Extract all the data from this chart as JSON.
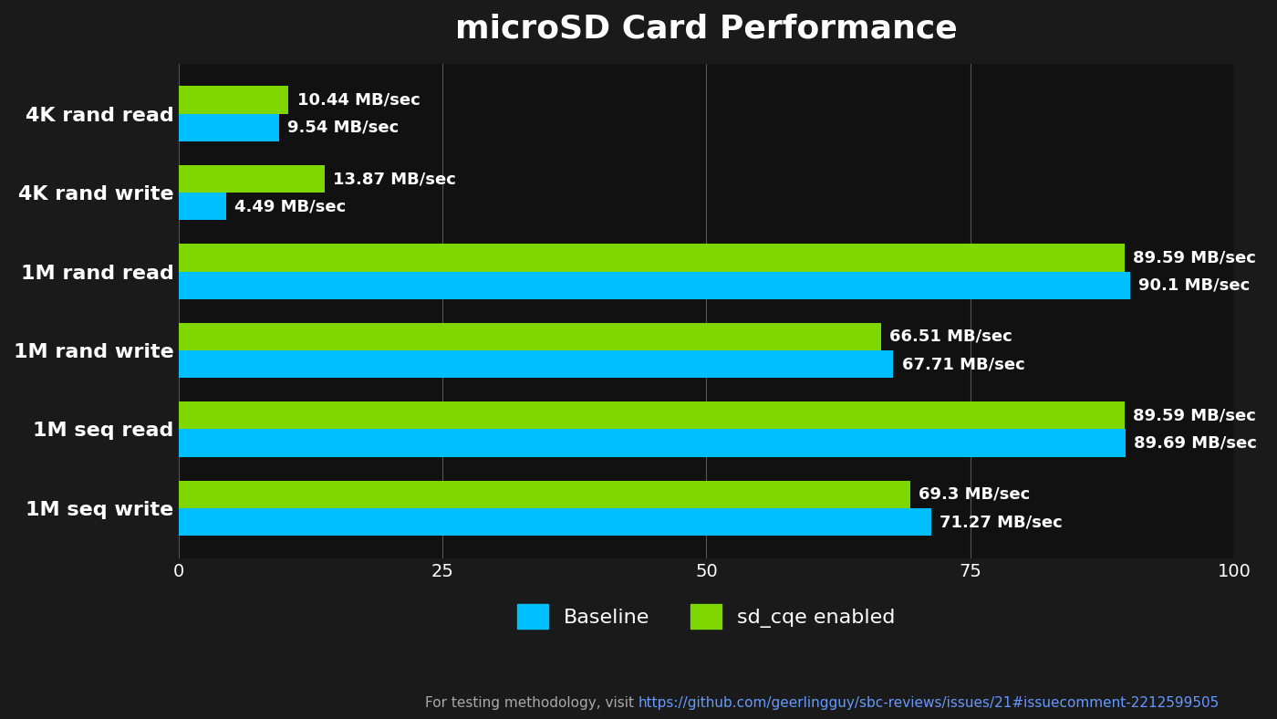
{
  "title": "microSD Card Performance",
  "categories": [
    "4K rand read",
    "4K rand write",
    "1M rand read",
    "1M rand write",
    "1M seq read",
    "1M seq write"
  ],
  "baseline": [
    9.54,
    4.49,
    90.1,
    67.71,
    89.69,
    71.27
  ],
  "sdcqe": [
    10.44,
    13.87,
    89.59,
    66.51,
    89.59,
    69.3
  ],
  "baseline_labels": [
    "9.54 MB/sec",
    "4.49 MB/sec",
    "90.1 MB/sec",
    "67.71 MB/sec",
    "89.69 MB/sec",
    "71.27 MB/sec"
  ],
  "sdcqe_labels": [
    "10.44 MB/sec",
    "13.87 MB/sec",
    "89.59 MB/sec",
    "66.51 MB/sec",
    "89.59 MB/sec",
    "69.3 MB/sec"
  ],
  "baseline_color": "#00BFFF",
  "sdcqe_color": "#7FD600",
  "bg_color": "#1a1a1a",
  "plot_bg_color": "#111111",
  "text_color": "#ffffff",
  "grid_color": "#555555",
  "xlim": [
    0,
    100
  ],
  "xticks": [
    0,
    25,
    50,
    75,
    100
  ],
  "bar_height": 0.35,
  "legend_baseline": "Baseline",
  "legend_sdcqe": "sd_cqe enabled",
  "footnote_plain": "For testing methodology, visit ",
  "footnote_url": "https://github.com/geerlingguy/sbc-reviews/issues/21#issuecomment-2212599505",
  "footnote_color": "#aaaaaa",
  "footnote_url_color": "#6699ff"
}
